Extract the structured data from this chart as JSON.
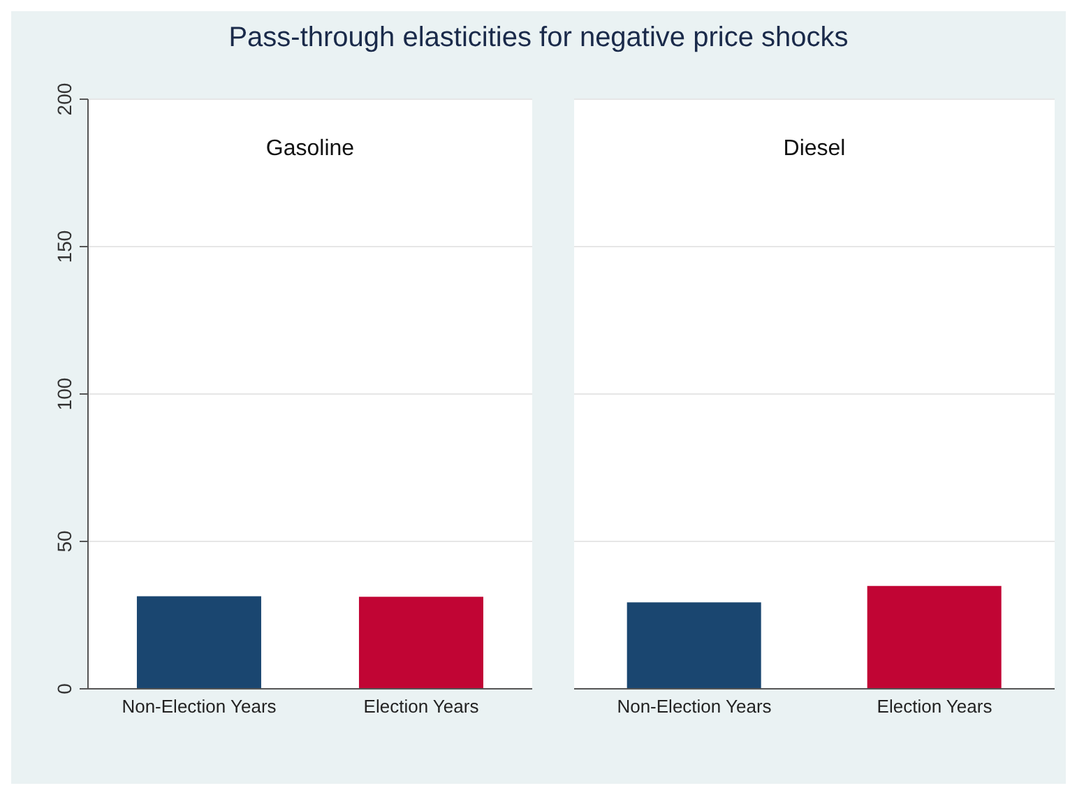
{
  "chart_data": [
    {
      "type": "bar",
      "title": "Pass-through elasticities for negative price shocks",
      "subtitle": "Gasoline",
      "categories": [
        "Non-Election Years",
        "Election Years"
      ],
      "values": [
        31.4,
        31.2
      ],
      "colors": [
        "#1a4670",
        "#c10534"
      ],
      "ylim": [
        0,
        200
      ],
      "yticks": [
        0,
        50,
        100,
        150,
        200
      ],
      "grid": "y"
    },
    {
      "type": "bar",
      "subtitle": "Diesel",
      "categories": [
        "Non-Election Years",
        "Election Years"
      ],
      "values": [
        29.3,
        34.9
      ],
      "colors": [
        "#1a4670",
        "#c10534"
      ],
      "ylim": [
        0,
        200
      ],
      "yticks": [
        0,
        50,
        100,
        150,
        200
      ],
      "grid": "y",
      "tick_labels": "x"
    }
  ]
}
